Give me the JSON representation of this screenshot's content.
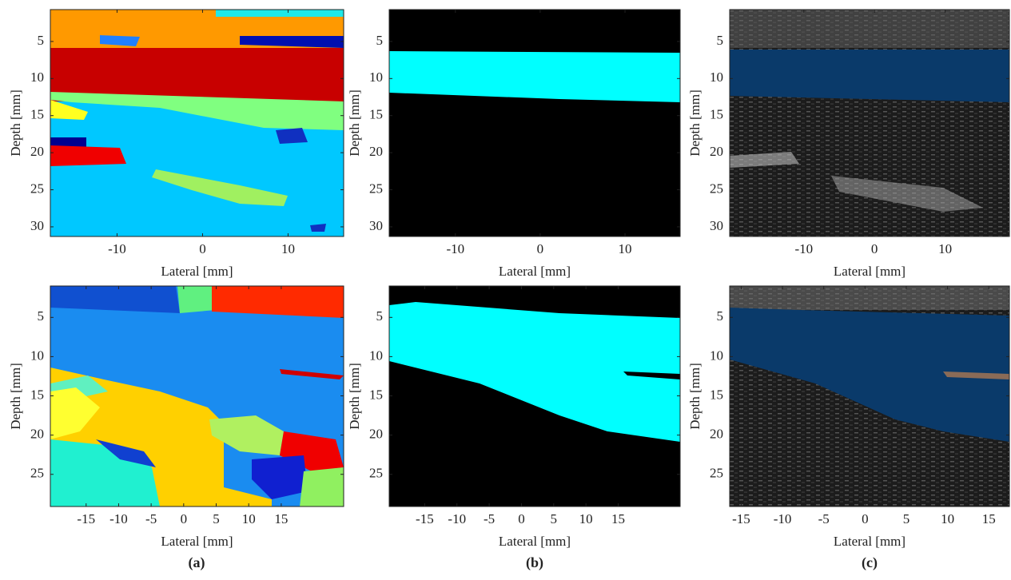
{
  "chart_data": [
    {
      "type": "image",
      "xlabel": "Lateral [mm]",
      "ylabel": "Depth [mm]",
      "xlim": [
        -17.8,
        16.5
      ],
      "ylim": [
        0.7,
        31.3
      ],
      "y_reversed": true,
      "xticks": [
        -10,
        0,
        10
      ],
      "yticks": [
        5,
        10,
        15,
        20,
        25,
        30
      ]
    },
    {
      "type": "image",
      "xlabel": "Lateral [mm]",
      "ylabel": "Depth [mm]",
      "xlim": [
        -17.8,
        16.5
      ],
      "ylim": [
        0.7,
        31.3
      ],
      "y_reversed": true,
      "xticks": [
        -10,
        0,
        10
      ],
      "yticks": [
        5,
        10,
        15,
        20,
        25,
        30
      ]
    },
    {
      "type": "image",
      "xlabel": "Lateral [mm]",
      "ylabel": "Depth [mm]",
      "xlim": [
        -20.5,
        19.1
      ],
      "ylim": [
        0.7,
        31.3
      ],
      "y_reversed": true,
      "xticks": [
        -10,
        0,
        10
      ],
      "yticks": [
        5,
        10,
        15,
        20,
        25,
        30
      ]
    },
    {
      "type": "image",
      "xlabel": "Lateral [mm]",
      "ylabel": "Depth [mm]",
      "xlim": [
        -20.5,
        24.6
      ],
      "ylim": [
        1.0,
        29.1
      ],
      "y_reversed": true,
      "xticks": [
        -15,
        -10,
        -5,
        0,
        5,
        10,
        15
      ],
      "yticks": [
        5,
        10,
        15,
        20,
        25
      ]
    },
    {
      "type": "image",
      "xlabel": "Lateral [mm]",
      "ylabel": "Depth [mm]",
      "xlim": [
        -20.5,
        24.6
      ],
      "ylim": [
        1.0,
        29.1
      ],
      "y_reversed": true,
      "xticks": [
        -15,
        -10,
        -5,
        0,
        5,
        10,
        15
      ],
      "yticks": [
        5,
        10,
        15,
        20,
        25
      ]
    },
    {
      "type": "image",
      "xlabel": "Lateral [mm]",
      "ylabel": "Depth [mm]",
      "xlim": [
        -16.4,
        17.5
      ],
      "ylim": [
        1.0,
        29.1
      ],
      "y_reversed": true,
      "xticks": [
        -15,
        -10,
        -5,
        0,
        5,
        10,
        15
      ],
      "yticks": [
        5,
        10,
        15,
        20,
        25
      ]
    }
  ],
  "captions": [
    "(a)",
    "(b)",
    "(c)"
  ]
}
